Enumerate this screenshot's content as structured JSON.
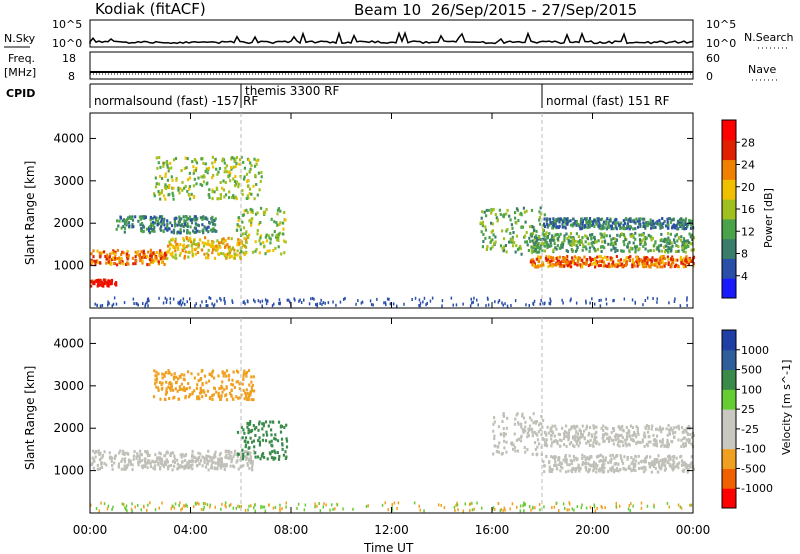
{
  "header": {
    "station": "Kodiak (fitACF)",
    "beam": "Beam 10",
    "dates": "26/Sep/2015 - 27/Sep/2015"
  },
  "strip_labels": {
    "nsky": "N.Sky",
    "nsky_top": "10^5",
    "nsky_bottom": "10^0",
    "nsearch": "N.Search",
    "nsearch_top": "10^5",
    "nsearch_bottom": "10^0",
    "freq": "Freq.",
    "freq_unit": "[MHz]",
    "freq_top": "18",
    "freq_bottom": "8",
    "nave": "Nave",
    "nave_top": "60",
    "nave_bottom": "0",
    "cpid": "CPID"
  },
  "cpid_segments": [
    {
      "label": "normalsound (fast) -157 RF",
      "start_h": 0
    },
    {
      "label": "themis 3300 RF",
      "start_h": 6
    },
    {
      "label": "normal (fast) 151 RF",
      "start_h": 18
    }
  ],
  "colors": {
    "power_scale": [
      "#1a1aff",
      "#2a4fa8",
      "#3a7d6a",
      "#4aa24a",
      "#a0c020",
      "#f0c000",
      "#f08000",
      "#e02000",
      "#ff0000"
    ],
    "velocity_scale": [
      "#1f3fa6",
      "#2f5f9a",
      "#3a8a4a",
      "#66cc33",
      "#c8c8c0",
      "#c8c8c0",
      "#f0a020",
      "#f06000",
      "#ff0000"
    ],
    "ground_scatter": "#c0c0b8"
  },
  "chart_data": [
    {
      "type": "heatmap",
      "title": "Power",
      "xlabel": "Time UT",
      "ylabel": "Slant Range [km]",
      "xlim": [
        0,
        24
      ],
      "ylim": [
        0,
        4600
      ],
      "xticks": [
        "00:00",
        "04:00",
        "08:00",
        "12:00",
        "16:00",
        "20:00",
        "00:00"
      ],
      "yticks": [
        "1000",
        "2000",
        "3000",
        "4000"
      ],
      "colorbar_label": "Power [dB]",
      "colorbar_ticks": [
        "4",
        "8",
        "12",
        "16",
        "20",
        "24",
        "28"
      ],
      "scatter_bands": [
        {
          "t0": 0.0,
          "t1": 3.0,
          "r0": 1050,
          "r1": 1400,
          "level": 22
        },
        {
          "t0": 3.0,
          "t1": 6.2,
          "r0": 1200,
          "r1": 1700,
          "level": 18
        },
        {
          "t0": 5.8,
          "t1": 7.8,
          "r0": 1300,
          "r1": 2400,
          "level": 14
        },
        {
          "t0": 0.0,
          "t1": 1.0,
          "r0": 550,
          "r1": 700,
          "level": 26
        },
        {
          "t0": 2.5,
          "t1": 6.8,
          "r0": 2600,
          "r1": 3600,
          "level": 14
        },
        {
          "t0": 1.0,
          "t1": 5.0,
          "r0": 1800,
          "r1": 2200,
          "level": 9
        },
        {
          "t0": 15.5,
          "t1": 18.2,
          "r0": 1300,
          "r1": 2400,
          "level": 12
        },
        {
          "t0": 17.5,
          "t1": 24.0,
          "r0": 1000,
          "r1": 1250,
          "level": 22
        },
        {
          "t0": 17.5,
          "t1": 24.0,
          "r0": 1350,
          "r1": 1800,
          "level": 11
        },
        {
          "t0": 18.0,
          "t1": 24.0,
          "r0": 1900,
          "r1": 2150,
          "level": 8
        }
      ]
    },
    {
      "type": "heatmap",
      "title": "Velocity",
      "xlabel": "Time UT",
      "ylabel": "Slant Range [km]",
      "xlim": [
        0,
        24
      ],
      "ylim": [
        0,
        4600
      ],
      "xticks": [
        "00:00",
        "04:00",
        "08:00",
        "12:00",
        "16:00",
        "20:00",
        "00:00"
      ],
      "yticks": [
        "1000",
        "2000",
        "3000",
        "4000"
      ],
      "colorbar_label": "Velocity [m s^-1]",
      "colorbar_ticks": [
        "1000",
        "500",
        "100",
        "25",
        "-25",
        "-100",
        "-500",
        "-1000"
      ],
      "scatter_bands": [
        {
          "t0": 0.0,
          "t1": 6.5,
          "r0": 1050,
          "r1": 1500,
          "level": 0
        },
        {
          "t0": 5.8,
          "t1": 7.8,
          "r0": 1300,
          "r1": 2200,
          "level": 150
        },
        {
          "t0": 2.5,
          "t1": 6.5,
          "r0": 2700,
          "r1": 3400,
          "level": -150
        },
        {
          "t0": 16.0,
          "t1": 18.0,
          "r0": 1400,
          "r1": 2400,
          "level": 0
        },
        {
          "t0": 18.0,
          "t1": 24.0,
          "r0": 1000,
          "r1": 1400,
          "level": 0
        },
        {
          "t0": 18.0,
          "t1": 24.0,
          "r0": 1600,
          "r1": 2100,
          "level": 0
        }
      ]
    }
  ]
}
